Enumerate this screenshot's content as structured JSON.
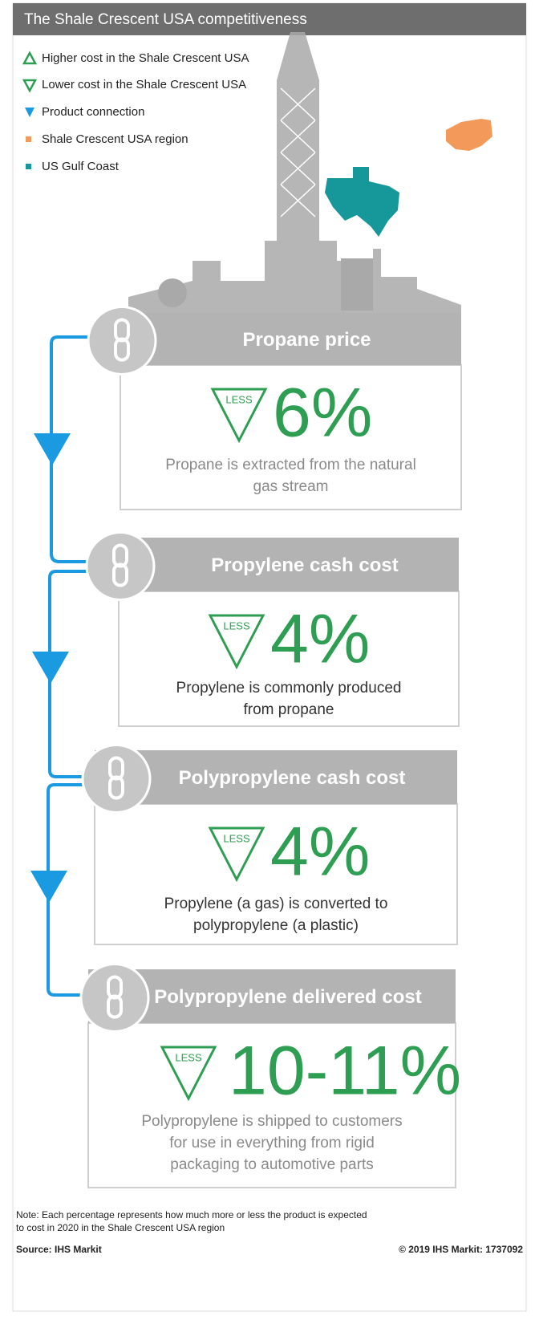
{
  "header": {
    "title": "The Shale Crescent USA competitiveness"
  },
  "legend": [
    {
      "label": "Higher cost in the Shale Crescent USA"
    },
    {
      "label": "Lower cost in the Shale Crescent USA"
    },
    {
      "label": "Product connection"
    },
    {
      "label": "Shale Crescent USA region"
    },
    {
      "label": "US Gulf Coast"
    }
  ],
  "steps": [
    {
      "title": "Propane price",
      "badge": "LESS",
      "value": "6%",
      "description": [
        "Propane is extracted from the natural",
        "gas stream"
      ]
    },
    {
      "title": "Propylene cash cost",
      "badge": "LESS",
      "value": "4%",
      "description": [
        "Propylene is commonly produced",
        "from propane"
      ]
    },
    {
      "title": "Polypropylene cash cost",
      "badge": "LESS",
      "value": "4%",
      "description": [
        "Propylene (a gas) is converted to",
        "polypropylene (a plastic)"
      ]
    },
    {
      "title": "Polypropylene delivered cost",
      "badge": "LESS",
      "value": "10-11%",
      "description": [
        "Polypropylene is shipped to customers",
        "for use in everything from rigid",
        "packaging to automotive parts"
      ]
    }
  ],
  "note": [
    "Note: Each percentage represents how much more or less the product is expected",
    "to cost in 2020 in the Shale Crescent USA region"
  ],
  "footer": {
    "source": "Source: IHS Markit",
    "copyright": "© 2019 IHS Markit: 1737092"
  }
}
